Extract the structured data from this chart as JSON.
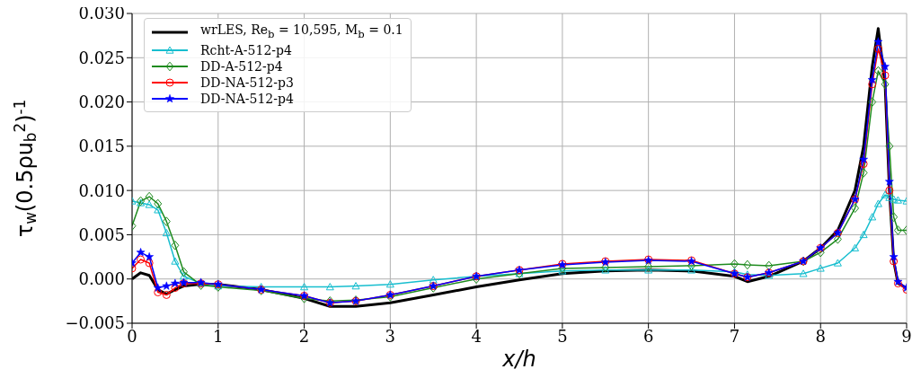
{
  "chart_data": {
    "type": "line",
    "xlabel": "x/h",
    "ylabel": "τ$_{w}$(0.5ρu$_{b}$$^{2}$)$^{-1}$",
    "x": [
      0,
      0.1,
      0.2,
      0.3,
      0.4,
      0.5,
      0.6,
      0.8,
      1,
      1.5,
      2,
      2.3,
      2.6,
      3,
      3.5,
      4,
      4.5,
      5,
      5.5,
      6,
      6.5,
      7,
      7.15,
      7.4,
      7.8,
      8,
      8.2,
      8.4,
      8.5,
      8.6,
      8.67,
      8.75,
      8.8,
      8.85,
      8.9,
      9
    ],
    "series": [
      {
        "name": "wrLES, Re$_{b}$ = 10,595, M$_{b}$ = 0.1",
        "color": "#000000",
        "marker": "none",
        "values": [
          0,
          0.0007,
          0.0004,
          -0.0012,
          -0.0017,
          -0.0012,
          -0.0008,
          -0.0006,
          -0.0006,
          -0.0012,
          -0.0022,
          -0.0031,
          -0.0031,
          -0.0027,
          -0.0018,
          -0.0009,
          -0.0001,
          0.0006,
          0.0009,
          0.001,
          0.0009,
          0.0003,
          -0.0003,
          0.0003,
          0.002,
          0.0035,
          0.0055,
          0.01,
          0.015,
          0.024,
          0.0283,
          0.022,
          0.01,
          0.002,
          -0.0005,
          -0.001
        ]
      },
      {
        "name": "Rcht-A-512-p4",
        "color": "#17becf",
        "marker": "triangle",
        "values": [
          0.0088,
          0.0086,
          0.0084,
          0.0078,
          0.0052,
          0.002,
          0.0003,
          -0.0005,
          -0.0008,
          -0.0009,
          -0.0009,
          -0.0009,
          -0.0008,
          -0.0006,
          -0.0001,
          0.0003,
          0.0006,
          0.0009,
          0.001,
          0.001,
          0.001,
          0.0008,
          0.0005,
          0.0004,
          0.0006,
          0.0012,
          0.0018,
          0.0035,
          0.005,
          0.007,
          0.0085,
          0.0095,
          0.0092,
          0.009,
          0.0089,
          0.0088
        ]
      },
      {
        "name": "DD-A-512-p4",
        "color": "#1f8b1f",
        "marker": "diamond",
        "values": [
          0.006,
          0.0088,
          0.0093,
          0.0085,
          0.0065,
          0.0038,
          0.0008,
          -0.0007,
          -0.0009,
          -0.0013,
          -0.0022,
          -0.0025,
          -0.0024,
          -0.002,
          -0.001,
          0.0,
          0.0006,
          0.0012,
          0.0013,
          0.0014,
          0.0015,
          0.0017,
          0.0016,
          0.0015,
          0.002,
          0.003,
          0.0045,
          0.008,
          0.012,
          0.02,
          0.0235,
          0.022,
          0.015,
          0.007,
          0.0055,
          0.0055
        ]
      },
      {
        "name": "DD-NA-512-p3",
        "color": "#ff0000",
        "marker": "circle",
        "values": [
          0.0012,
          0.0022,
          0.0018,
          -0.0015,
          -0.0018,
          -0.001,
          -0.0005,
          -0.0005,
          -0.0006,
          -0.0012,
          -0.0019,
          -0.0027,
          -0.0025,
          -0.0018,
          -0.0008,
          0.0003,
          0.001,
          0.0017,
          0.002,
          0.0022,
          0.0021,
          0.0006,
          0.0002,
          0.0007,
          0.002,
          0.0035,
          0.0052,
          0.009,
          0.013,
          0.022,
          0.026,
          0.023,
          0.01,
          0.002,
          -0.0005,
          -0.0012
        ]
      },
      {
        "name": "DD-NA-512-p4",
        "color": "#0000ff",
        "marker": "star",
        "values": [
          0.0018,
          0.003,
          0.0025,
          -0.001,
          -0.0008,
          -0.0005,
          -0.0004,
          -0.0004,
          -0.0006,
          -0.0012,
          -0.0019,
          -0.0027,
          -0.0025,
          -0.0018,
          -0.0008,
          0.0003,
          0.001,
          0.0016,
          0.0019,
          0.0021,
          0.002,
          0.0006,
          0.0002,
          0.0007,
          0.002,
          0.0035,
          0.0052,
          0.009,
          0.0135,
          0.0225,
          0.0268,
          0.024,
          0.011,
          0.0025,
          -0.0003,
          -0.001
        ]
      }
    ],
    "xlim": [
      0,
      9
    ],
    "xticks": [
      0,
      1,
      2,
      3,
      4,
      5,
      6,
      7,
      8,
      9
    ],
    "ylim": [
      -0.005,
      0.03
    ],
    "yticks": [
      {
        "value": -0.005,
        "label": "−0.005"
      },
      {
        "value": 0,
        "label": "0.000"
      },
      {
        "value": 0.005,
        "label": "0.005"
      },
      {
        "value": 0.01,
        "label": "0.010"
      },
      {
        "value": 0.015,
        "label": "0.015"
      },
      {
        "value": 0.02,
        "label": "0.020"
      },
      {
        "value": 0.025,
        "label": "0.025"
      },
      {
        "value": 0.03,
        "label": "0.030"
      }
    ],
    "grid": true,
    "legend": "top left"
  }
}
